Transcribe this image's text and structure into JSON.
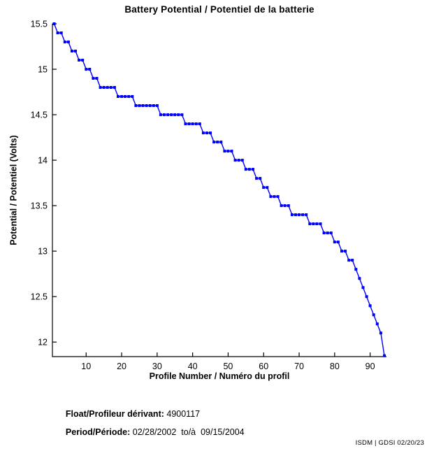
{
  "title": "Battery Potential / Potentiel de la batterie",
  "footer": {
    "float_label": "Float/Profileur dérivant:",
    "float_value": " 4900117",
    "period_label": "Period/Période:",
    "period_value": " 02/28/2002  to/à  09/15/2004",
    "credit": "ISDM | GDSI 02/20/23"
  },
  "chart_data": {
    "type": "line",
    "title": "Battery Potential / Potentiel de la batterie",
    "xlabel": "Profile Number / Numéro du profil",
    "ylabel": "Potential / Potentiel (Volts)",
    "xlim": [
      0.5,
      94.6
    ],
    "ylim": [
      11.84,
      15.5
    ],
    "x_ticks": [
      10,
      20,
      30,
      40,
      50,
      60,
      70,
      80,
      90
    ],
    "y_ticks": [
      12,
      12.5,
      13,
      13.5,
      14,
      14.5,
      15,
      15.5
    ],
    "grid": false,
    "legend": null,
    "line_color": "#0000FF",
    "axis_color": "#000000",
    "marker": "filled-square-dot",
    "series": [
      {
        "name": "battery-potential",
        "x": [
          1,
          2,
          3,
          4,
          5,
          6,
          7,
          8,
          9,
          10,
          11,
          12,
          13,
          14,
          15,
          16,
          17,
          18,
          19,
          20,
          21,
          22,
          23,
          24,
          25,
          26,
          27,
          28,
          29,
          30,
          31,
          32,
          33,
          34,
          35,
          36,
          37,
          38,
          39,
          40,
          41,
          42,
          43,
          44,
          45,
          46,
          47,
          48,
          49,
          50,
          51,
          52,
          53,
          54,
          55,
          56,
          57,
          58,
          59,
          60,
          61,
          62,
          63,
          64,
          65,
          66,
          67,
          68,
          69,
          70,
          71,
          72,
          73,
          74,
          75,
          76,
          77,
          78,
          79,
          80,
          81,
          82,
          83,
          84,
          85,
          86,
          87,
          88,
          89,
          90,
          91,
          92,
          93,
          94
        ],
        "values": [
          15.5,
          15.4,
          15.4,
          15.3,
          15.3,
          15.2,
          15.2,
          15.1,
          15.1,
          15.0,
          15.0,
          14.9,
          14.9,
          14.8,
          14.8,
          14.8,
          14.8,
          14.8,
          14.7,
          14.7,
          14.7,
          14.7,
          14.7,
          14.6,
          14.6,
          14.6,
          14.6,
          14.6,
          14.6,
          14.6,
          14.5,
          14.5,
          14.5,
          14.5,
          14.5,
          14.5,
          14.5,
          14.4,
          14.4,
          14.4,
          14.4,
          14.4,
          14.3,
          14.3,
          14.3,
          14.2,
          14.2,
          14.2,
          14.1,
          14.1,
          14.1,
          14.0,
          14.0,
          14.0,
          13.9,
          13.9,
          13.9,
          13.8,
          13.8,
          13.7,
          13.7,
          13.6,
          13.6,
          13.6,
          13.5,
          13.5,
          13.5,
          13.4,
          13.4,
          13.4,
          13.4,
          13.4,
          13.3,
          13.3,
          13.3,
          13.3,
          13.2,
          13.2,
          13.2,
          13.1,
          13.1,
          13.0,
          13.0,
          12.9,
          12.9,
          12.8,
          12.7,
          12.6,
          12.5,
          12.4,
          12.3,
          12.2,
          12.1,
          11.85
        ]
      }
    ]
  }
}
